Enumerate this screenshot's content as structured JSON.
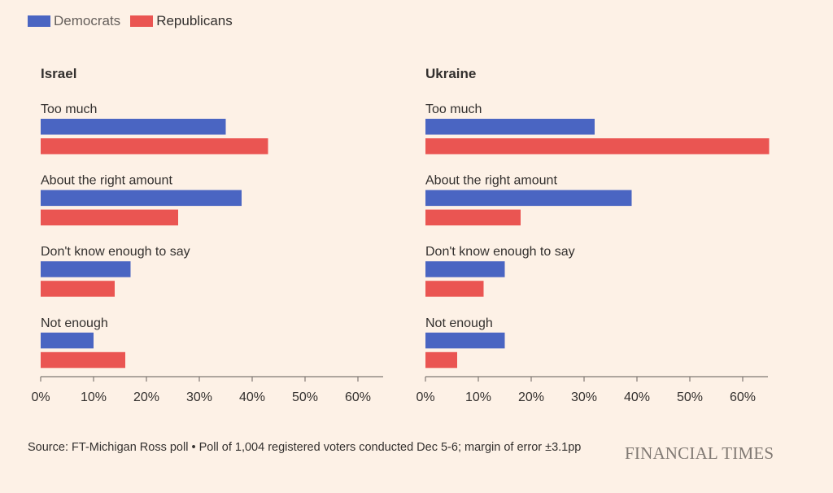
{
  "legend": [
    {
      "name": "Democrats",
      "color": "#4a65c2"
    },
    {
      "name": "Republicans",
      "color": "#ea5552"
    }
  ],
  "chart_data": [
    {
      "type": "bar",
      "orientation": "horizontal",
      "title": "Israel",
      "categories": [
        "Too much",
        "About the right amount",
        "Don't know enough to say",
        "Not enough"
      ],
      "series": [
        {
          "name": "Democrats",
          "values": [
            35,
            38,
            17,
            10
          ]
        },
        {
          "name": "Republicans",
          "values": [
            43,
            26,
            14,
            16
          ]
        }
      ],
      "xlim": [
        0,
        65
      ],
      "xticks": [
        0,
        10,
        20,
        30,
        40,
        50,
        60
      ],
      "tick_labels": [
        "0%",
        "10%",
        "20%",
        "30%",
        "40%",
        "50%",
        "60%"
      ]
    },
    {
      "type": "bar",
      "orientation": "horizontal",
      "title": "Ukraine",
      "categories": [
        "Too much",
        "About the right amount",
        "Don't know enough to say",
        "Not enough"
      ],
      "series": [
        {
          "name": "Democrats",
          "values": [
            32,
            39,
            15,
            15
          ]
        },
        {
          "name": "Republicans",
          "values": [
            65,
            18,
            11,
            6
          ]
        }
      ],
      "xlim": [
        0,
        65
      ],
      "xticks": [
        0,
        10,
        20,
        30,
        40,
        50,
        60
      ],
      "tick_labels": [
        "0%",
        "10%",
        "20%",
        "30%",
        "40%",
        "50%",
        "60%"
      ]
    }
  ],
  "source": "Source: FT-Michigan Ross poll • Poll of 1,004 registered voters conducted Dec 5-6; margin of error ±3.1pp",
  "brand": "FINANCIAL TIMES"
}
